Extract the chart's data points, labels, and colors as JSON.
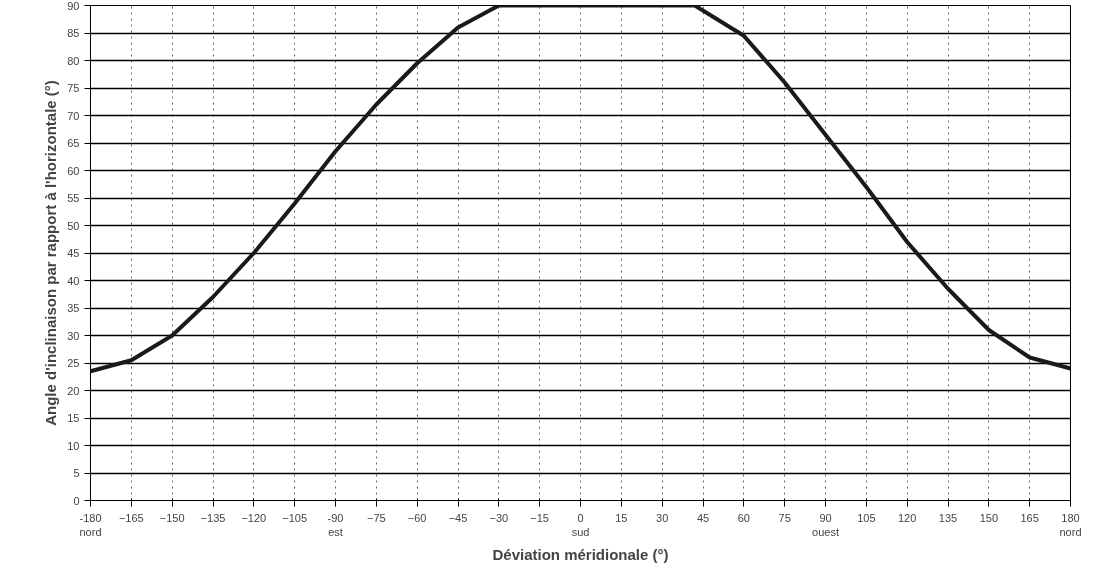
{
  "chart_data": {
    "type": "line",
    "xlabel": "Déviation méridionale (°)",
    "ylabel": "Angle d'inclinaison par rapport à l'horizontale (°)",
    "x": [
      -180,
      -165,
      -150,
      -135,
      -120,
      -105,
      -90,
      -75,
      -60,
      -45,
      -30,
      -15,
      0,
      15,
      30,
      42,
      60,
      75,
      90,
      105,
      120,
      135,
      150,
      165,
      180
    ],
    "series": [
      {
        "color": "#1a1a1a",
        "values": [
          23.5,
          25.5,
          30,
          37,
          45,
          54,
          63.5,
          72,
          79.5,
          86,
          90,
          90,
          90,
          90,
          90,
          90,
          84.5,
          76,
          66.5,
          57,
          47,
          38.5,
          31,
          26,
          24
        ]
      }
    ],
    "xlim": [
      -180,
      180
    ],
    "ylim": [
      0,
      90
    ],
    "xticks": [
      {
        "value": -180,
        "label": "-180\nnord"
      },
      -165,
      -150,
      -135,
      -120,
      -105,
      {
        "value": -90,
        "label": "-90\nest"
      },
      -75,
      -60,
      -45,
      -30,
      -15,
      {
        "value": 0,
        "label": "0\nsud"
      },
      15,
      30,
      45,
      60,
      75,
      {
        "value": 90,
        "label": "90\nouest"
      },
      105,
      120,
      135,
      150,
      165,
      {
        "value": 180,
        "label": "180\nnord"
      }
    ],
    "yticks": [
      0,
      5,
      10,
      15,
      20,
      25,
      30,
      35,
      40,
      45,
      50,
      55,
      60,
      65,
      70,
      75,
      80,
      85,
      90
    ],
    "grid": true,
    "marker": "none",
    "line_style": "solid"
  }
}
